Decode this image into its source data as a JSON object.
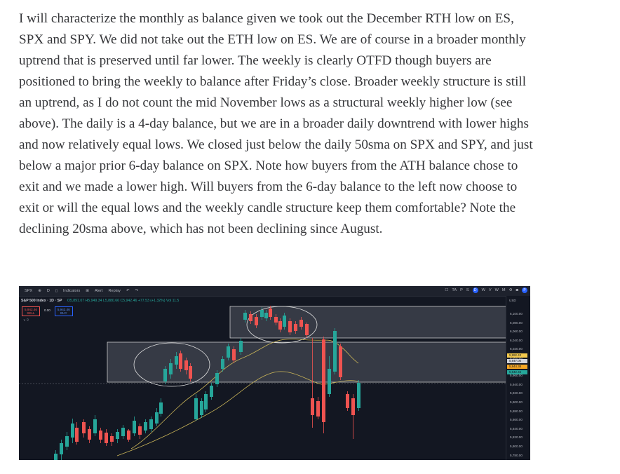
{
  "article": {
    "paragraph": "I will characterize the monthly as balance given we took out the December RTH low on ES, SPX and SPY. We did not take out the ETH low on ES. We are of course in a broader monthly uptrend that is preserved until far lower. The weekly is clearly OTFD though buyers are positioned to bring the weekly to balance after Friday’s close. Broader weekly structure is still an uptrend, as I do not count the mid November lows as a structural weekly higher low (see above). The daily is a 4-day balance, but we are in a broader daily downtrend with lower highs and now relatively equal lows. We closed just below the daily 50sma on SPX and SPY, and just below a major prior 6-day balance on SPX. Note how buyers from the ATH balance chose to exit and we made a lower high. Will buyers from the 6-day balance to the left now choose to exit or will the equal lows and the weekly candle structure keep them comfortable? Note the declining 20sma above, which has not been declining since August."
  },
  "chart": {
    "toolbar": {
      "symbol": "SPX",
      "interval": "D",
      "indicators": "Indicators",
      "alert": "Alert",
      "replay": "Replay",
      "right_labels": [
        "TA",
        "P",
        "S",
        "D",
        "W",
        "V",
        "W",
        "M"
      ],
      "right_circle": "P"
    },
    "legend": {
      "title": "S&P 500 Index · 1D · SP",
      "ohlc": "O5,891.07 H5,949.34 L5,880.66 C5,942.46 +77.53 (+1.32%) Vol 11.5"
    },
    "sell_price": "5,942.46",
    "sell_label": "SELL",
    "spread": "0.00",
    "buy_price": "5,942.46",
    "buy_label": "BUY",
    "collapse_note": "∨ 9",
    "axis": {
      "currency": "USD",
      "ticks": [
        "6,100.00",
        "6,080.00",
        "6,060.00",
        "6,040.00",
        "6,020.00",
        "6,000.00",
        "5,980.00",
        "5,960.00",
        "5,940.00",
        "5,920.00",
        "5,900.00",
        "5,880.00",
        "5,860.00",
        "5,840.00",
        "5,820.00",
        "5,800.00",
        "5,780.00"
      ],
      "tags": [
        {
          "label": "5,992.43",
          "color": "#f2c94c"
        },
        {
          "label": "5,947.00",
          "color": "#d1d4dc"
        },
        {
          "label": "5,944.38",
          "color": "#f5a623"
        },
        {
          "label": "5,942.46",
          "color": "#26a69a"
        }
      ]
    },
    "colors": {
      "up": "#26a69a",
      "down": "#ef5350",
      "sma20": "#c9b458",
      "sma50": "#c9b458",
      "balance_box": "#9598a1"
    }
  }
}
